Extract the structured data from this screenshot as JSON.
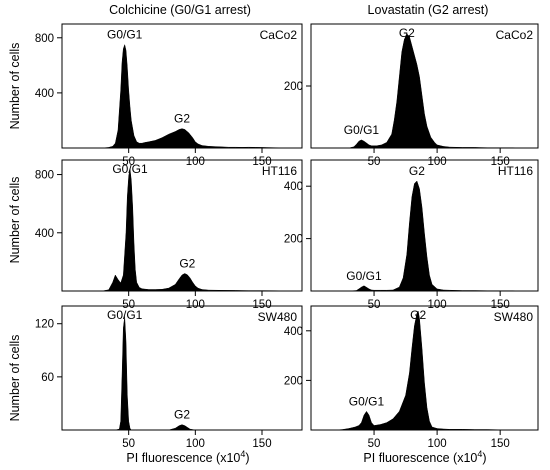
{
  "figure": {
    "column_titles": [
      "Colchicine (G0/G1 arrest)",
      "Lovastatin (G2 arrest)"
    ],
    "ylabel": "Number of cells",
    "xlabel_main": "PI fluorescence (x10",
    "xlabel_sup": "4",
    "xlabel_end": ")"
  },
  "chart_data": [
    {
      "type": "area",
      "panel": "colchicine-caco2",
      "cell_line": "CaCo2",
      "xlim": [
        0,
        180
      ],
      "ylim": [
        0,
        900
      ],
      "xticks": [
        50,
        100,
        150
      ],
      "yticks": [
        400,
        800
      ],
      "x": [
        10,
        15,
        20,
        25,
        30,
        35,
        38,
        40,
        42,
        44,
        45,
        46,
        47,
        48,
        49,
        50,
        51,
        52,
        54,
        56,
        58,
        60,
        62,
        65,
        70,
        75,
        80,
        85,
        88,
        90,
        92,
        95,
        98,
        100,
        102,
        105,
        110,
        115,
        120,
        125,
        130,
        135,
        140,
        145,
        150,
        160,
        170,
        180
      ],
      "y": [
        0,
        0,
        0,
        0,
        0,
        4,
        12,
        35,
        130,
        420,
        620,
        720,
        750,
        710,
        590,
        420,
        300,
        200,
        90,
        45,
        35,
        35,
        40,
        45,
        55,
        75,
        100,
        120,
        135,
        140,
        135,
        110,
        75,
        45,
        30,
        18,
        12,
        10,
        8,
        6,
        6,
        5,
        6,
        5,
        4,
        2,
        1,
        0
      ],
      "annotations": [
        {
          "text": "G0/G1",
          "x": 47,
          "y": 750
        },
        {
          "text": "G2",
          "x": 90,
          "y": 140
        }
      ]
    },
    {
      "type": "area",
      "panel": "lovastatin-caco2",
      "cell_line": "CaCo2",
      "xlim": [
        0,
        180
      ],
      "ylim": [
        0,
        400
      ],
      "xticks": [
        50,
        100,
        150
      ],
      "yticks": [
        200
      ],
      "x": [
        10,
        20,
        25,
        30,
        34,
        36,
        38,
        40,
        42,
        44,
        46,
        48,
        52,
        56,
        60,
        64,
        66,
        68,
        70,
        72,
        74,
        76,
        78,
        80,
        82,
        84,
        86,
        88,
        90,
        92,
        95,
        98,
        100,
        105,
        110,
        120,
        130,
        140,
        150,
        160,
        170,
        180
      ],
      "y": [
        0,
        0,
        0,
        0,
        4,
        12,
        22,
        26,
        22,
        16,
        10,
        7,
        7,
        10,
        18,
        45,
        90,
        150,
        230,
        310,
        350,
        368,
        360,
        330,
        300,
        270,
        230,
        170,
        110,
        70,
        35,
        18,
        10,
        5,
        3,
        2,
        2,
        1,
        1,
        1,
        0,
        0
      ],
      "annotations": [
        {
          "text": "G0/G1",
          "x": 40,
          "y": 26
        },
        {
          "text": "G2",
          "x": 76,
          "y": 368
        }
      ]
    },
    {
      "type": "area",
      "panel": "colchicine-ht116",
      "cell_line": "HT116",
      "xlim": [
        0,
        180
      ],
      "ylim": [
        0,
        900
      ],
      "xticks": [
        50,
        100,
        150
      ],
      "yticks": [
        400,
        800
      ],
      "x": [
        10,
        20,
        30,
        35,
        38,
        40,
        42,
        44,
        46,
        48,
        49,
        50,
        51,
        52,
        53,
        54,
        55,
        56,
        58,
        60,
        65,
        70,
        75,
        80,
        85,
        88,
        90,
        92,
        94,
        96,
        98,
        100,
        102,
        105,
        110,
        120,
        130,
        140,
        150,
        160,
        170,
        180
      ],
      "y": [
        0,
        0,
        0,
        8,
        60,
        110,
        80,
        55,
        110,
        400,
        650,
        790,
        840,
        760,
        580,
        330,
        150,
        60,
        25,
        15,
        10,
        10,
        12,
        20,
        45,
        85,
        110,
        120,
        112,
        90,
        60,
        35,
        20,
        10,
        6,
        5,
        4,
        3,
        3,
        2,
        1,
        0
      ],
      "annotations": [
        {
          "text": "G0/G1",
          "x": 51,
          "y": 840
        },
        {
          "text": "G2",
          "x": 94,
          "y": 120
        }
      ]
    },
    {
      "type": "area",
      "panel": "lovastatin-ht116",
      "cell_line": "HT116",
      "xlim": [
        0,
        180
      ],
      "ylim": [
        0,
        500
      ],
      "xticks": [
        50,
        100,
        150
      ],
      "yticks": [
        200,
        400
      ],
      "x": [
        10,
        20,
        30,
        36,
        38,
        40,
        42,
        44,
        46,
        48,
        50,
        55,
        60,
        65,
        70,
        73,
        76,
        78,
        80,
        82,
        84,
        86,
        88,
        90,
        92,
        94,
        96,
        100,
        105,
        110,
        120,
        130,
        140,
        150,
        160,
        170,
        180
      ],
      "y": [
        0,
        0,
        0,
        2,
        8,
        15,
        20,
        14,
        8,
        4,
        3,
        3,
        3,
        4,
        15,
        50,
        140,
        260,
        360,
        410,
        420,
        390,
        320,
        220,
        130,
        60,
        25,
        8,
        4,
        3,
        2,
        2,
        1,
        1,
        1,
        0,
        0
      ],
      "annotations": [
        {
          "text": "G0/G1",
          "x": 42,
          "y": 20
        },
        {
          "text": "G2",
          "x": 84,
          "y": 420
        }
      ]
    },
    {
      "type": "area",
      "panel": "colchicine-sw480",
      "cell_line": "SW480",
      "xlim": [
        0,
        180
      ],
      "ylim": [
        0,
        140
      ],
      "xticks": [
        50,
        100,
        150
      ],
      "yticks": [
        60,
        120
      ],
      "x": [
        10,
        30,
        40,
        43,
        44,
        45,
        46,
        47,
        48,
        49,
        50,
        51,
        52,
        55,
        60,
        70,
        80,
        85,
        88,
        90,
        92,
        94,
        96,
        100,
        110,
        120,
        140,
        160,
        180
      ],
      "y": [
        0,
        0,
        0,
        1,
        10,
        60,
        115,
        128,
        100,
        40,
        10,
        2,
        0,
        0,
        0,
        0,
        0,
        2,
        5,
        6,
        5,
        3,
        1,
        0,
        0,
        0,
        0,
        0,
        0
      ],
      "annotations": [
        {
          "text": "G0/G1",
          "x": 47,
          "y": 128
        },
        {
          "text": "G2",
          "x": 90,
          "y": 6
        }
      ]
    },
    {
      "type": "area",
      "panel": "lovastatin-sw480",
      "cell_line": "SW480",
      "xlim": [
        0,
        180
      ],
      "ylim": [
        0,
        500
      ],
      "xticks": [
        50,
        100,
        150
      ],
      "yticks": [
        200,
        400
      ],
      "x": [
        10,
        20,
        25,
        30,
        35,
        38,
        40,
        42,
        44,
        46,
        48,
        50,
        55,
        60,
        65,
        70,
        75,
        78,
        80,
        82,
        84,
        85,
        86,
        88,
        90,
        92,
        94,
        96,
        100,
        105,
        110,
        120,
        130,
        140,
        150,
        160,
        170,
        180
      ],
      "y": [
        0,
        0,
        2,
        6,
        12,
        18,
        30,
        60,
        75,
        60,
        30,
        18,
        22,
        30,
        45,
        75,
        140,
        230,
        330,
        420,
        470,
        480,
        450,
        330,
        190,
        90,
        35,
        12,
        6,
        4,
        3,
        3,
        2,
        2,
        1,
        1,
        0,
        0
      ],
      "annotations": [
        {
          "text": "G0/G1",
          "x": 44,
          "y": 75
        },
        {
          "text": "G2",
          "x": 85,
          "y": 480
        }
      ]
    }
  ]
}
